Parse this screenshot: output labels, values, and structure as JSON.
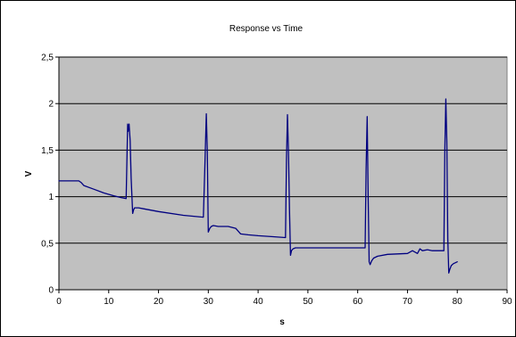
{
  "chart_data": {
    "type": "line",
    "title": "Response vs Time",
    "xlabel": "s",
    "ylabel": "V",
    "xlim": [
      0,
      90
    ],
    "ylim": [
      0,
      2.5
    ],
    "x_ticks": [
      0,
      10,
      20,
      30,
      40,
      50,
      60,
      70,
      80,
      90
    ],
    "x_tick_labels": [
      "0",
      "10",
      "20",
      "30",
      "40",
      "50",
      "60",
      "70",
      "80",
      "90"
    ],
    "y_ticks": [
      0,
      0.5,
      1,
      1.5,
      2,
      2.5
    ],
    "y_tick_labels": [
      "0",
      "0,5",
      "1",
      "1,5",
      "2",
      "2,5"
    ],
    "grid": "horizontal",
    "plot_background": "#c0c0c0",
    "series": [
      {
        "color": "#000080",
        "x": [
          0,
          1,
          2,
          3,
          4,
          4.5,
          5,
          7,
          9,
          11,
          12.5,
          13.5,
          13.8,
          13.9,
          14.1,
          14.3,
          14.5,
          14.8,
          15,
          15.2,
          15.5,
          16,
          17,
          20,
          25,
          29,
          29.3,
          29.6,
          29.8,
          30,
          30.3,
          30.6,
          31,
          32,
          34,
          35.5,
          36.5,
          38,
          40,
          43,
          45.5,
          45.7,
          45.9,
          46.1,
          46.3,
          46.5,
          46.7,
          47,
          47.5,
          48,
          50,
          55,
          61.5,
          61.7,
          61.9,
          62.1,
          62.3,
          62.5,
          62.8,
          63.2,
          64,
          66,
          70,
          71,
          72,
          72.5,
          73,
          74,
          75,
          77,
          77.3,
          77.5,
          77.7,
          77.9,
          78.1,
          78.3,
          78.5,
          78.8,
          79.2,
          80
        ],
        "y": [
          1.17,
          1.17,
          1.17,
          1.17,
          1.17,
          1.15,
          1.12,
          1.08,
          1.04,
          1.01,
          0.99,
          0.98,
          1.78,
          1.7,
          1.78,
          1.6,
          1.2,
          0.82,
          0.86,
          0.88,
          0.88,
          0.88,
          0.87,
          0.84,
          0.8,
          0.78,
          1.3,
          1.89,
          1.5,
          0.62,
          0.66,
          0.68,
          0.69,
          0.68,
          0.68,
          0.66,
          0.6,
          0.59,
          0.58,
          0.57,
          0.56,
          1.4,
          1.88,
          1.5,
          0.85,
          0.37,
          0.42,
          0.44,
          0.45,
          0.45,
          0.45,
          0.45,
          0.45,
          1.3,
          1.86,
          1.0,
          0.3,
          0.27,
          0.31,
          0.34,
          0.36,
          0.38,
          0.39,
          0.42,
          0.39,
          0.44,
          0.42,
          0.43,
          0.42,
          0.42,
          0.42,
          1.5,
          2.05,
          1.6,
          0.55,
          0.18,
          0.22,
          0.26,
          0.28,
          0.3
        ]
      }
    ]
  }
}
